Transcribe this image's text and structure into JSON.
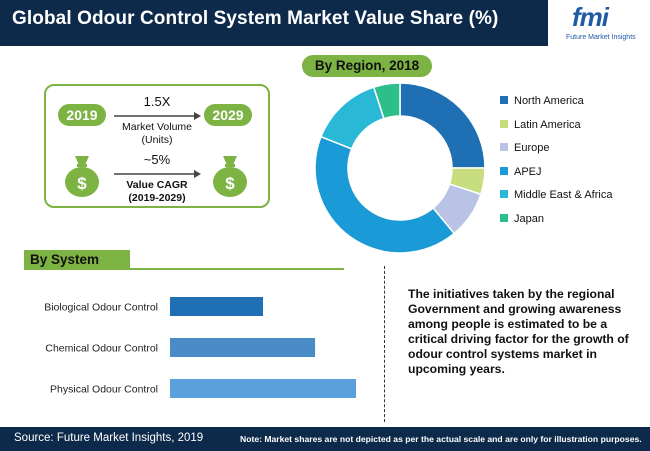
{
  "title": "Global Odour Control System Market Value Share (%)",
  "logo": {
    "mark": "fmi",
    "tagline": "Future Market Insights"
  },
  "region_heading": "By Region, 2018",
  "system_heading": "By System",
  "infobox": {
    "year_start": "2019",
    "year_end": "2029",
    "volume_multiple": "1.5X",
    "volume_label": "Market Volume",
    "volume_unit": "(Units)",
    "cagr_value": "~5%",
    "cagr_label": "Value CAGR",
    "cagr_period": "(2019-2029)",
    "icon_glyph": "$"
  },
  "description": "The initiatives taken by the regional Government and growing awareness among people is estimated to be a critical driving factor for the growth of odour control systems market in upcoming years.",
  "footer": {
    "source": "Source: Future Market Insights, 2019",
    "note": "Note: Market shares are not depicted as per the actual scale and are only for illustration purposes."
  },
  "colors": {
    "header": "#0d2a4a",
    "accent": "#7cb342",
    "brand": "#1f5aa6"
  },
  "chart_data": [
    {
      "type": "pie",
      "title": "By Region, 2018",
      "donut": true,
      "categories": [
        "North America",
        "Latin America",
        "Europe",
        "APEJ",
        "Middle East & Africa",
        "Japan"
      ],
      "values": [
        25,
        5,
        9,
        42,
        14,
        5
      ],
      "colors": [
        "#1f6fb4",
        "#c7dd7e",
        "#b9c3e6",
        "#1a9ad6",
        "#29b9d6",
        "#2dbf8a"
      ],
      "legend": "right"
    },
    {
      "type": "bar",
      "orientation": "horizontal",
      "title": "By System",
      "categories": [
        "Biological Odour Control",
        "Chemical Odour Control",
        "Physical Odour Control"
      ],
      "values": [
        50,
        78,
        100
      ],
      "colors": [
        "#1f6fb4",
        "#4a8cc8",
        "#5aa0dc"
      ]
    }
  ]
}
